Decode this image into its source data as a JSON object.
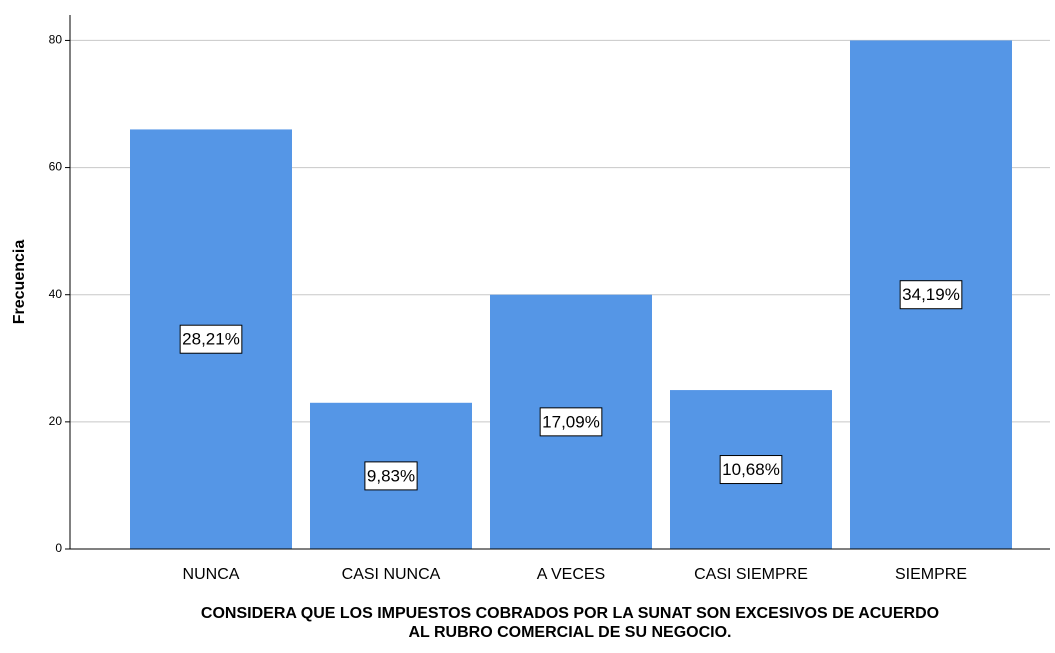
{
  "chart_data": {
    "type": "bar",
    "xlabel": [
      "CONSIDERA QUE LOS IMPUESTOS COBRADOS POR LA SUNAT SON EXCESIVOS DE ACUERDO",
      "AL RUBRO COMERCIAL DE SU NEGOCIO."
    ],
    "ylabel": "Frecuencia",
    "categories": [
      "NUNCA",
      "CASI NUNCA",
      "A VECES",
      "CASI SIEMPRE",
      "SIEMPRE"
    ],
    "values": [
      66,
      23,
      40,
      25,
      80
    ],
    "percent_labels": [
      "28,21%",
      "9,83%",
      "17,09%",
      "10,68%",
      "34,19%"
    ],
    "color": "#5596e6",
    "ylim": [
      0,
      84
    ],
    "yticks": [
      0,
      20,
      40,
      60,
      80
    ],
    "grid": true
  }
}
